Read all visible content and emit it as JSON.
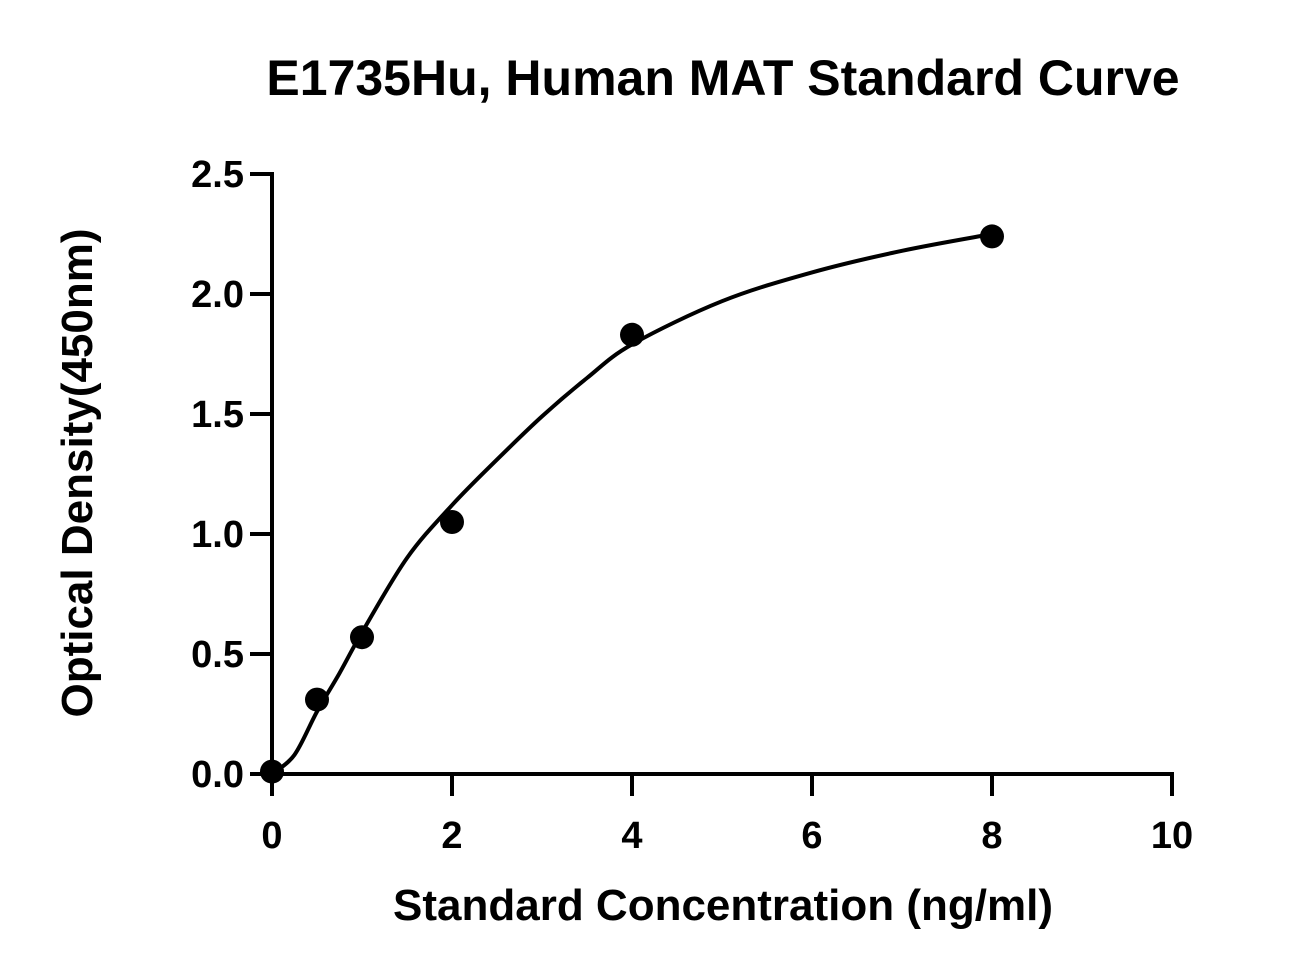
{
  "chart_data": {
    "type": "scatter",
    "title": "E1735Hu, Human MAT Standard Curve",
    "xlabel": "Standard Concentration (ng/ml)",
    "ylabel": "Optical Density(450nm)",
    "xlim": [
      0,
      10
    ],
    "ylim": [
      0,
      2.5
    ],
    "x_ticks": [
      "0",
      "2",
      "4",
      "6",
      "8",
      "10"
    ],
    "y_ticks": [
      "0.0",
      "0.5",
      "1.0",
      "1.5",
      "2.0",
      "2.5"
    ],
    "grid": false,
    "legend": "none",
    "series": [
      {
        "points": [
          {
            "x": 0,
            "y": 0.01
          },
          {
            "x": 0.5,
            "y": 0.31
          },
          {
            "x": 1,
            "y": 0.57
          },
          {
            "x": 2,
            "y": 1.05
          },
          {
            "x": 4,
            "y": 1.83
          },
          {
            "x": 8,
            "y": 2.24
          }
        ],
        "color": "#000000"
      }
    ],
    "fit_curve": {
      "points": [
        {
          "x": 0,
          "y": 0.0
        },
        {
          "x": 0.25,
          "y": 0.08
        },
        {
          "x": 0.5,
          "y": 0.26
        },
        {
          "x": 0.75,
          "y": 0.42
        },
        {
          "x": 1,
          "y": 0.59
        },
        {
          "x": 1.5,
          "y": 0.9
        },
        {
          "x": 2,
          "y": 1.12
        },
        {
          "x": 2.5,
          "y": 1.31
        },
        {
          "x": 3,
          "y": 1.49
        },
        {
          "x": 3.5,
          "y": 1.65
        },
        {
          "x": 4,
          "y": 1.79
        },
        {
          "x": 5,
          "y": 1.97
        },
        {
          "x": 6,
          "y": 2.09
        },
        {
          "x": 7,
          "y": 2.18
        },
        {
          "x": 8,
          "y": 2.25
        }
      ],
      "color": "#000000"
    }
  }
}
